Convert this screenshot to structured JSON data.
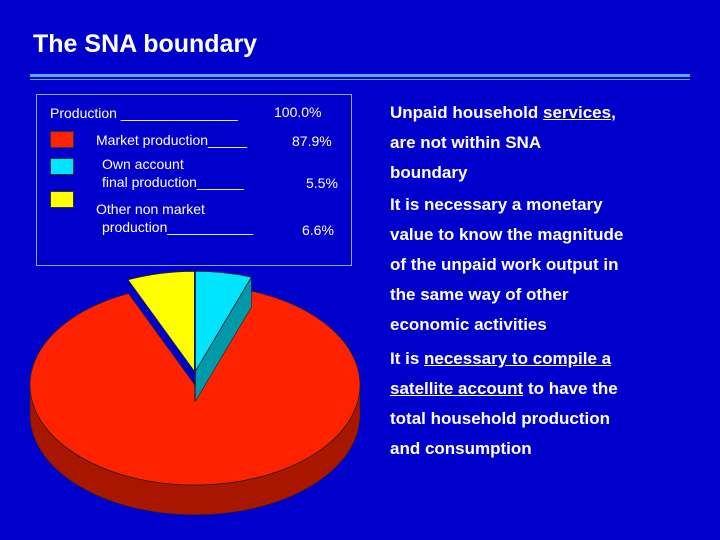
{
  "slide": {
    "title": "The SNA boundary"
  },
  "colors": {
    "background": "#0000cc",
    "market": "#ff2200",
    "own_account": "#00e5ff",
    "other_non_market": "#ffff00",
    "rule": "#5aa9ff"
  },
  "legend": {
    "header_label": "Production _______________",
    "header_value": "100.0%",
    "items": [
      {
        "line1": "Market production_____",
        "line2": "",
        "value": "87.9%"
      },
      {
        "line1": "Own account",
        "line2": "final production______",
        "value": "5.5%"
      },
      {
        "line1": "Other non market",
        "line2": "production___________",
        "value": "6.6%"
      }
    ]
  },
  "chart_data": {
    "type": "pie",
    "title": "",
    "categories": [
      "Market production",
      "Own account final production",
      "Other non market production"
    ],
    "values": [
      87.9,
      5.5,
      6.6
    ],
    "total": 100.0,
    "unit": "%",
    "legend_position": "top-left",
    "three_d": true,
    "exploded": [
      "Own account final production",
      "Other non market production"
    ]
  },
  "notes": {
    "p1": {
      "a": "Unpaid household ",
      "b": "services,",
      "c": "are not within SNA",
      "d": "boundary"
    },
    "p2": {
      "a": "It is necessary a monetary",
      "b": "value to know the magnitude",
      "c": "of the unpaid work output in",
      "d": "the same way of other",
      "e": "economic activities"
    },
    "p3": {
      "a": "It is ",
      "b": "necessary to compile a",
      "c": "satellite account",
      "d": " to have the",
      "e": "total household production",
      "f": "and consumption"
    }
  }
}
